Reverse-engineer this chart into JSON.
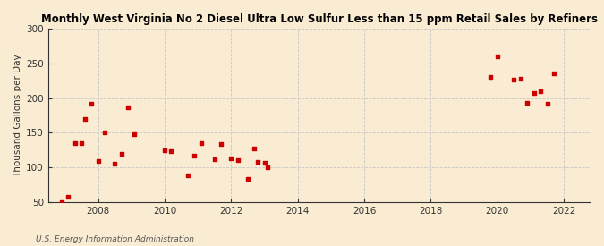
{
  "title": "Monthly West Virginia No 2 Diesel Ultra Low Sulfur Less than 15 ppm Retail Sales by Refiners",
  "ylabel": "Thousand Gallons per Day",
  "source": "U.S. Energy Information Administration",
  "background_color": "#faecd2",
  "plot_bg_color": "#faecd2",
  "marker_color": "#cc0000",
  "marker_size": 12,
  "ylim": [
    50,
    300
  ],
  "yticks": [
    50,
    100,
    150,
    200,
    250,
    300
  ],
  "xlim": [
    2006.5,
    2022.8
  ],
  "xticks": [
    2008,
    2010,
    2012,
    2014,
    2016,
    2018,
    2020,
    2022
  ],
  "data_x": [
    2006.9,
    2007.1,
    2007.3,
    2007.5,
    2007.6,
    2007.8,
    2008.0,
    2008.2,
    2008.5,
    2008.7,
    2008.9,
    2009.1,
    2010.0,
    2010.2,
    2010.7,
    2010.9,
    2011.1,
    2011.5,
    2011.7,
    2012.0,
    2012.2,
    2012.5,
    2012.7,
    2012.8,
    2013.0,
    2013.1,
    2019.8,
    2020.0,
    2020.5,
    2020.7,
    2020.9,
    2021.1,
    2021.3,
    2021.5,
    2021.7
  ],
  "data_y": [
    50,
    58,
    135,
    135,
    170,
    192,
    109,
    150,
    105,
    120,
    186,
    148,
    125,
    123,
    88,
    117,
    135,
    112,
    133,
    113,
    110,
    83,
    127,
    108,
    107,
    100,
    230,
    260,
    226,
    228,
    193,
    207,
    210,
    192,
    235
  ]
}
